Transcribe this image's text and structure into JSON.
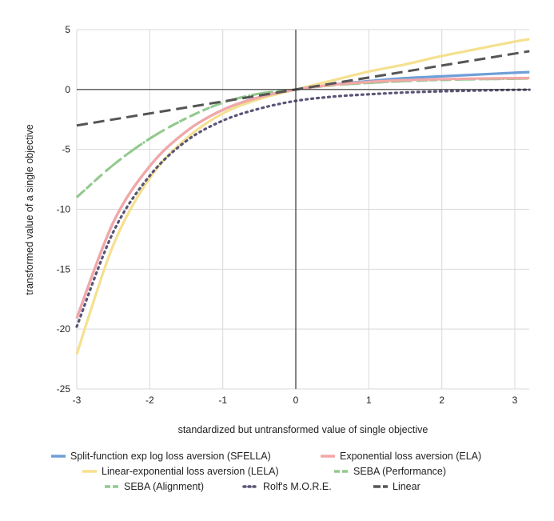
{
  "chart_data": {
    "type": "line",
    "title": "",
    "xlabel": "standardized but untransformed value of  single objective",
    "ylabel": "transformed value of a single objective",
    "xlim": [
      -3,
      3.2
    ],
    "ylim": [
      -25,
      5
    ],
    "x_ticks": [
      -3,
      -2,
      -1,
      0,
      1,
      2,
      3
    ],
    "y_ticks": [
      5,
      0,
      -5,
      -10,
      -15,
      -20,
      -25
    ],
    "grid": true,
    "legend_position": "bottom",
    "series": [
      {
        "name": "Split-function exp log loss aversion (SFELLA)",
        "color": "#6f9fd8",
        "dash": "solid",
        "x": [
          -3,
          -2.5,
          -2,
          -1.5,
          -1,
          -0.5,
          0,
          0.5,
          1,
          1.5,
          2,
          2.5,
          3,
          3.2
        ],
        "y": [
          -19.1,
          -11.1,
          -6.4,
          -3.5,
          -1.7,
          -0.65,
          0,
          0.4,
          0.7,
          0.95,
          1.1,
          1.25,
          1.4,
          1.45
        ]
      },
      {
        "name": "Exponential loss aversion (ELA)",
        "color": "#f4a7a7",
        "dash": "solid",
        "x": [
          -3,
          -2.5,
          -2,
          -1.5,
          -1,
          -0.5,
          0,
          0.5,
          1,
          1.5,
          2,
          2.5,
          3,
          3.2
        ],
        "y": [
          -19.1,
          -11.1,
          -6.4,
          -3.5,
          -1.7,
          -0.65,
          0,
          0.39,
          0.63,
          0.78,
          0.86,
          0.92,
          0.95,
          0.96
        ]
      },
      {
        "name": "Linear-exponential loss aversion (LELA)",
        "color": "#f5e08f",
        "dash": "solid",
        "x": [
          -3,
          -2.5,
          -2,
          -1.5,
          -1,
          -0.5,
          0,
          0.5,
          1,
          1.5,
          2,
          2.5,
          3,
          3.2
        ],
        "y": [
          -22.1,
          -13.0,
          -7.4,
          -4.1,
          -2.0,
          -0.8,
          0,
          0.75,
          1.5,
          2.1,
          2.8,
          3.4,
          4.0,
          4.2
        ]
      },
      {
        "name": "SEBA (Performance)",
        "color": "#93c98f",
        "dash": "dashed",
        "x": [
          -3,
          -2.5,
          -2,
          -1.5,
          -1,
          -0.5,
          0,
          0.5,
          1,
          1.5,
          2,
          2.5,
          3,
          3.2
        ],
        "y": [
          -9.0,
          -6.3,
          -4.1,
          -2.4,
          -1.1,
          -0.35,
          0,
          0.35,
          0.55,
          0.7,
          0.8,
          0.86,
          0.9,
          0.92
        ]
      },
      {
        "name": "SEBA (Alignment)",
        "color": "#93c98f",
        "dash": "dashdot",
        "x": [
          -3,
          -2.5,
          -2,
          -1.5,
          -1,
          -0.5,
          0,
          0.5,
          1,
          1.5,
          2,
          2.5,
          3,
          3.2
        ],
        "y": [
          -9.0,
          -6.3,
          -4.1,
          -2.4,
          -1.1,
          -0.35,
          0,
          0.35,
          0.55,
          0.7,
          0.8,
          0.86,
          0.9,
          0.92
        ]
      },
      {
        "name": "Rolf's M.O.R.E.",
        "color": "#5a5577",
        "dash": "dotted",
        "x": [
          -3,
          -2.5,
          -2,
          -1.5,
          -1,
          -0.5,
          0,
          0.5,
          1,
          1.5,
          2,
          2.5,
          3,
          3.2
        ],
        "y": [
          -19.8,
          -11.9,
          -7.2,
          -4.3,
          -2.6,
          -1.6,
          -0.95,
          -0.6,
          -0.4,
          -0.25,
          -0.15,
          -0.08,
          -0.03,
          -0.02
        ]
      },
      {
        "name": "Linear",
        "color": "#555555",
        "dash": "longdash",
        "x": [
          -3,
          3.2
        ],
        "y": [
          -3.0,
          3.2
        ]
      }
    ]
  }
}
